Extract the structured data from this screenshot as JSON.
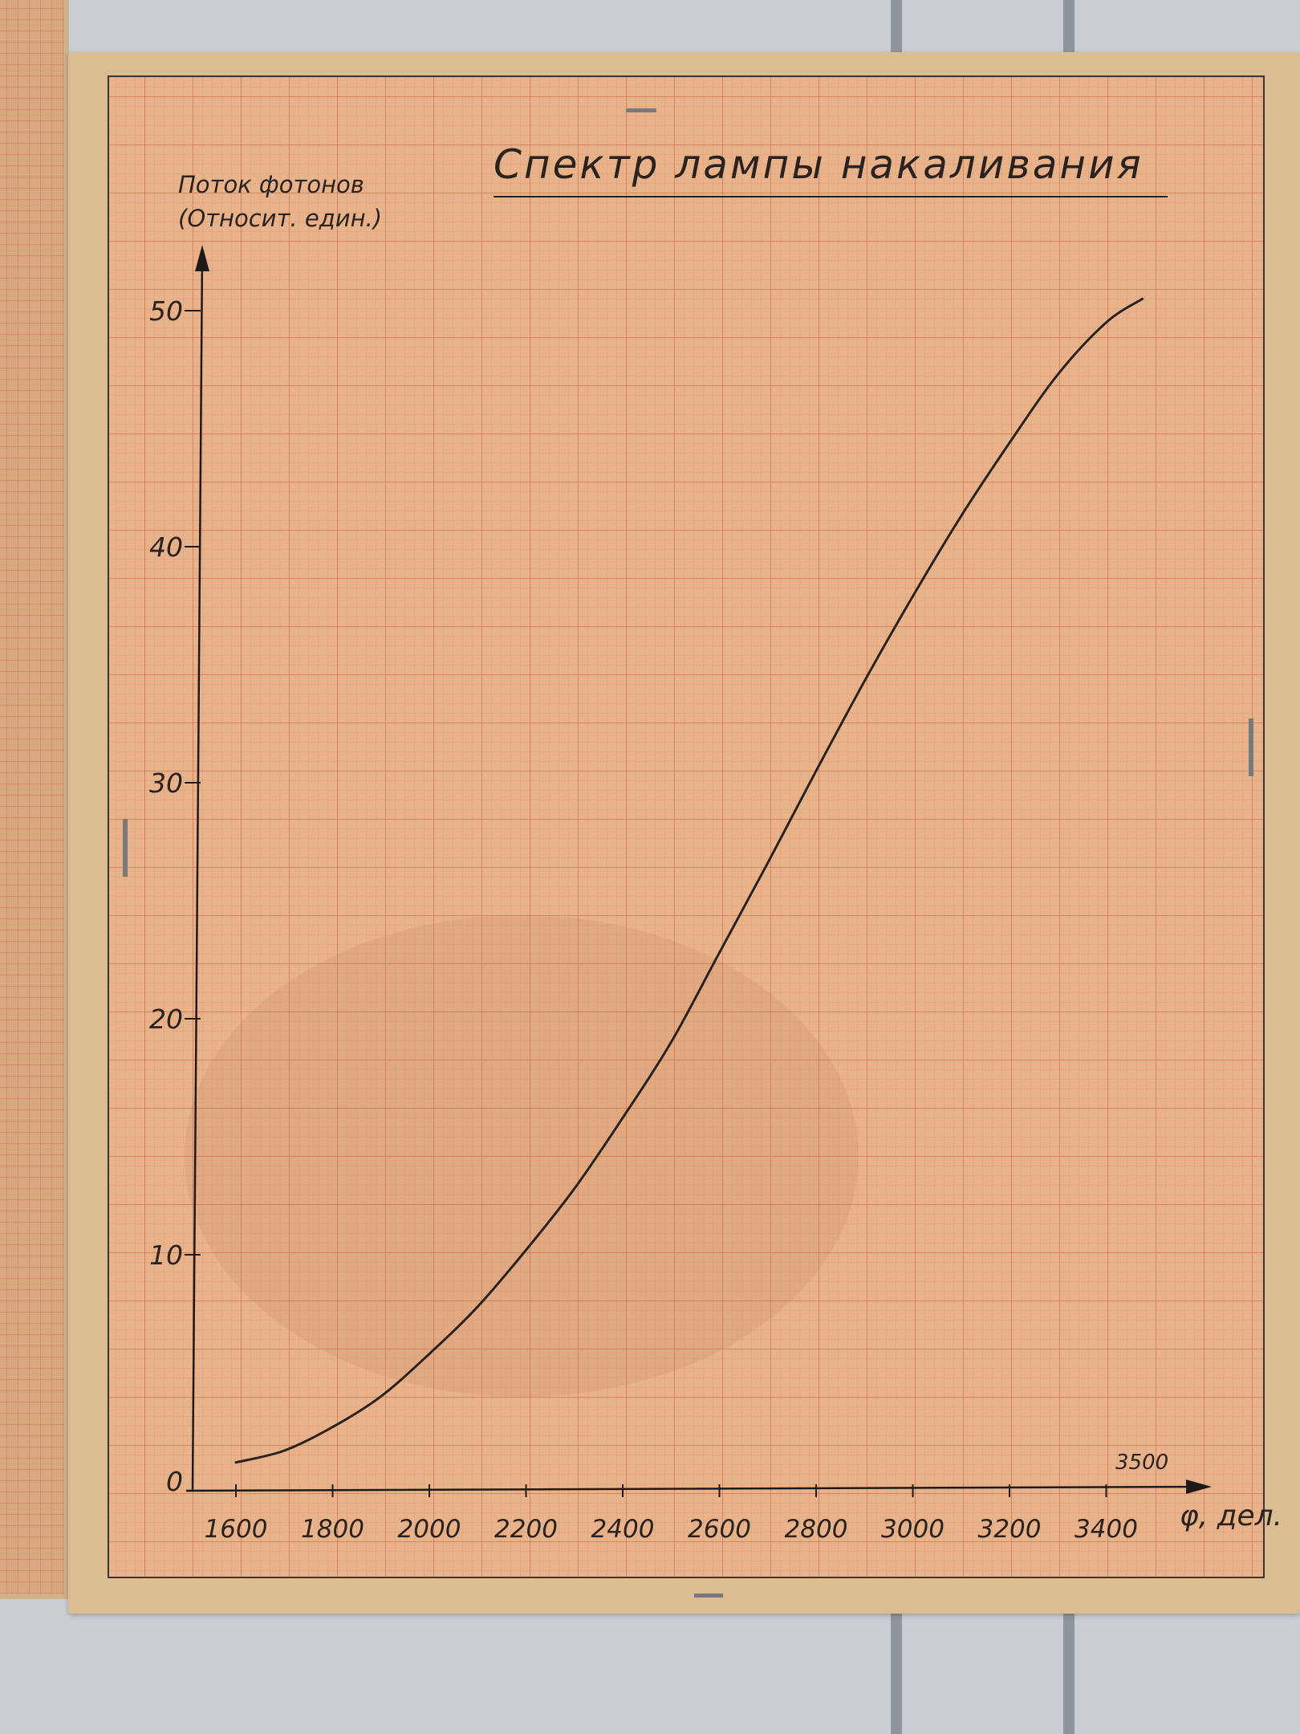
{
  "chart_data": {
    "type": "line",
    "title": "Спектр лампы накаливания",
    "ylabel_line1": "Поток фотонов",
    "ylabel_line2": "(Относит. един.)",
    "xlabel": "φ, дел.",
    "x_extra_label": "3500",
    "xlim": [
      1500,
      3600
    ],
    "ylim": [
      0,
      55
    ],
    "x_ticks": [
      1600,
      1800,
      2000,
      2200,
      2400,
      2600,
      2800,
      3000,
      3200,
      3400
    ],
    "y_ticks": [
      0,
      10,
      20,
      30,
      40,
      50
    ],
    "grid": true,
    "series": [
      {
        "x": [
          1600,
          1700,
          1800,
          1900,
          2000,
          2100,
          2200,
          2300,
          2400,
          2500,
          2600,
          2700,
          2800,
          2900,
          3000,
          3100,
          3200,
          3300,
          3400,
          3475
        ],
        "y": [
          1.2,
          1.7,
          2.7,
          4.0,
          5.8,
          7.8,
          10.2,
          12.8,
          15.8,
          19.0,
          22.8,
          26.6,
          30.5,
          34.3,
          37.9,
          41.3,
          44.4,
          47.3,
          49.5,
          50.5
        ],
        "color": "#2a221e"
      }
    ]
  }
}
